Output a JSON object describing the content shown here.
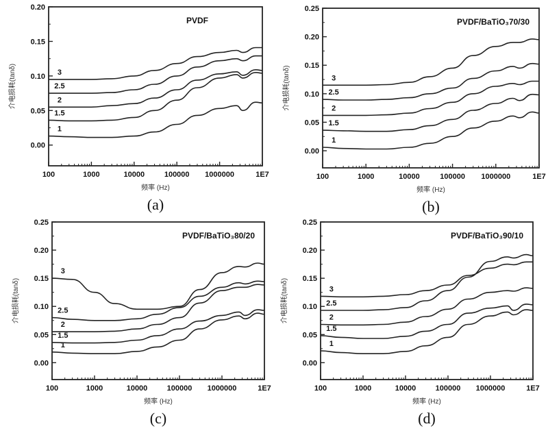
{
  "chart_data": [
    {
      "type": "line",
      "panel": "(a)",
      "title": "PVDF",
      "xlabel": "频率 (Hz)",
      "ylabel": "介电损耗(tanδ)",
      "xscale": "log",
      "xlim": [
        100,
        10000000
      ],
      "ylim": [
        -0.03,
        0.2
      ],
      "xticks": [
        100,
        1000,
        10000,
        100000,
        1000000,
        10000000
      ],
      "xtick_labels": [
        "100",
        "1000",
        "10000",
        "100000",
        "1000000",
        "1E7"
      ],
      "yticks": [
        0.0,
        0.05,
        0.1,
        0.15,
        0.2
      ],
      "ytick_labels": [
        "0.00",
        "0.05",
        "0.10",
        "0.15",
        "0.20"
      ],
      "x": [
        100,
        300,
        1000,
        3000,
        10000,
        30000,
        100000,
        300000,
        1000000,
        2500000,
        3500000,
        7000000,
        10000000
      ],
      "series": [
        {
          "name": "1",
          "values": [
            0.013,
            0.012,
            0.011,
            0.011,
            0.013,
            0.019,
            0.03,
            0.043,
            0.053,
            0.057,
            0.05,
            0.062,
            0.061
          ]
        },
        {
          "name": "1.5",
          "values": [
            0.036,
            0.035,
            0.035,
            0.036,
            0.04,
            0.05,
            0.065,
            0.083,
            0.097,
            0.102,
            0.097,
            0.105,
            0.104
          ]
        },
        {
          "name": "2",
          "values": [
            0.055,
            0.055,
            0.055,
            0.057,
            0.06,
            0.068,
            0.08,
            0.094,
            0.103,
            0.106,
            0.101,
            0.109,
            0.108
          ]
        },
        {
          "name": "2.5",
          "values": [
            0.075,
            0.075,
            0.075,
            0.076,
            0.08,
            0.088,
            0.1,
            0.113,
            0.122,
            0.125,
            0.122,
            0.129,
            0.129
          ]
        },
        {
          "name": "3",
          "values": [
            0.095,
            0.095,
            0.095,
            0.096,
            0.1,
            0.108,
            0.118,
            0.128,
            0.134,
            0.137,
            0.134,
            0.141,
            0.141
          ]
        }
      ]
    },
    {
      "type": "line",
      "panel": "(b)",
      "title": "PVDF/BaTiO₃70/30",
      "xlabel": "频率 (Hz)",
      "ylabel": "介电损耗(tanδ)",
      "xscale": "log",
      "xlim": [
        100,
        10000000
      ],
      "ylim": [
        -0.03,
        0.25
      ],
      "xticks": [
        100,
        1000,
        10000,
        100000,
        1000000,
        10000000
      ],
      "xtick_labels": [
        "100",
        "1000",
        "10000",
        "100000",
        "1000000",
        "1E7"
      ],
      "yticks": [
        0.0,
        0.05,
        0.1,
        0.15,
        0.2,
        0.25
      ],
      "ytick_labels": [
        "0.00",
        "0.05",
        "0.10",
        "0.15",
        "0.20",
        "0.25"
      ],
      "x": [
        100,
        300,
        1000,
        3000,
        10000,
        30000,
        100000,
        300000,
        1000000,
        2500000,
        3500000,
        7000000,
        10000000
      ],
      "series": [
        {
          "name": "1",
          "values": [
            0.006,
            0.004,
            0.003,
            0.003,
            0.006,
            0.013,
            0.025,
            0.04,
            0.052,
            0.061,
            0.058,
            0.068,
            0.066
          ]
        },
        {
          "name": "1.5",
          "values": [
            0.036,
            0.035,
            0.034,
            0.034,
            0.037,
            0.044,
            0.055,
            0.071,
            0.083,
            0.092,
            0.088,
            0.099,
            0.098
          ]
        },
        {
          "name": "2",
          "values": [
            0.062,
            0.062,
            0.062,
            0.063,
            0.066,
            0.074,
            0.085,
            0.1,
            0.113,
            0.118,
            0.116,
            0.122,
            0.122
          ]
        },
        {
          "name": "2.5",
          "values": [
            0.09,
            0.089,
            0.089,
            0.09,
            0.093,
            0.1,
            0.11,
            0.127,
            0.14,
            0.148,
            0.145,
            0.153,
            0.152
          ]
        },
        {
          "name": "3",
          "values": [
            0.115,
            0.115,
            0.115,
            0.116,
            0.12,
            0.13,
            0.145,
            0.167,
            0.183,
            0.19,
            0.19,
            0.196,
            0.195
          ]
        }
      ]
    },
    {
      "type": "line",
      "panel": "(c)",
      "title": "PVDF/BaTiO₃80/20",
      "xlabel": "频率 (Hz)",
      "ylabel": "介电损耗(tanδ)",
      "xscale": "log",
      "xlim": [
        100,
        10000000
      ],
      "ylim": [
        -0.03,
        0.25
      ],
      "xticks": [
        100,
        1000,
        10000,
        100000,
        1000000,
        10000000
      ],
      "xtick_labels": [
        "100",
        "1000",
        "10000",
        "100000",
        "1000000",
        "1E7"
      ],
      "yticks": [
        0.0,
        0.05,
        0.1,
        0.15,
        0.2,
        0.25
      ],
      "ytick_labels": [
        "0.00",
        "0.05",
        "0.10",
        "0.15",
        "0.20",
        "0.25"
      ],
      "x": [
        100,
        300,
        1000,
        3000,
        10000,
        30000,
        100000,
        300000,
        1000000,
        2500000,
        3500000,
        7000000,
        10000000
      ],
      "series": [
        {
          "name": "1",
          "values": [
            0.019,
            0.017,
            0.016,
            0.016,
            0.02,
            0.028,
            0.04,
            0.06,
            0.076,
            0.083,
            0.078,
            0.088,
            0.086
          ]
        },
        {
          "name": "1.5",
          "values": [
            0.036,
            0.035,
            0.035,
            0.036,
            0.04,
            0.048,
            0.06,
            0.074,
            0.084,
            0.09,
            0.084,
            0.094,
            0.093
          ]
        },
        {
          "name": "2",
          "values": [
            0.055,
            0.055,
            0.055,
            0.056,
            0.06,
            0.068,
            0.08,
            0.106,
            0.128,
            0.134,
            0.134,
            0.139,
            0.138
          ]
        },
        {
          "name": "2.5",
          "values": [
            0.08,
            0.077,
            0.075,
            0.075,
            0.078,
            0.086,
            0.098,
            0.118,
            0.134,
            0.142,
            0.14,
            0.145,
            0.144
          ]
        },
        {
          "name": "3",
          "values": [
            0.15,
            0.148,
            0.125,
            0.105,
            0.095,
            0.095,
            0.1,
            0.13,
            0.16,
            0.171,
            0.17,
            0.177,
            0.175
          ]
        }
      ]
    },
    {
      "type": "line",
      "panel": "(d)",
      "title": "PVDF/BaTiO₃90/10",
      "xlabel": "频率 (Hz)",
      "ylabel": "介电损耗(tanδ)",
      "xscale": "log",
      "xlim": [
        100,
        10000000
      ],
      "ylim": [
        -0.03,
        0.25
      ],
      "xticks": [
        100,
        1000,
        10000,
        100000,
        1000000,
        10000000
      ],
      "xtick_labels": [
        "100",
        "1000",
        "10000",
        "100000",
        "1000000",
        "1E7"
      ],
      "yticks": [
        0.0,
        0.05,
        0.1,
        0.15,
        0.2,
        0.25
      ],
      "ytick_labels": [
        "0.00",
        "0.05",
        "0.10",
        "0.15",
        "0.20",
        "0.25"
      ],
      "x": [
        100,
        300,
        1000,
        3000,
        10000,
        30000,
        100000,
        300000,
        1000000,
        2500000,
        3500000,
        7000000,
        10000000
      ],
      "series": [
        {
          "name": "1",
          "values": [
            0.021,
            0.018,
            0.016,
            0.016,
            0.02,
            0.03,
            0.045,
            0.068,
            0.083,
            0.09,
            0.085,
            0.094,
            0.093
          ]
        },
        {
          "name": "1.5",
          "values": [
            0.048,
            0.045,
            0.043,
            0.043,
            0.047,
            0.056,
            0.068,
            0.088,
            0.097,
            0.101,
            0.093,
            0.104,
            0.103
          ]
        },
        {
          "name": "2",
          "values": [
            0.068,
            0.067,
            0.067,
            0.068,
            0.072,
            0.082,
            0.095,
            0.113,
            0.125,
            0.128,
            0.127,
            0.133,
            0.132
          ]
        },
        {
          "name": "2.5",
          "values": [
            0.093,
            0.093,
            0.093,
            0.094,
            0.098,
            0.11,
            0.128,
            0.152,
            0.18,
            0.188,
            0.186,
            0.192,
            0.19
          ]
        },
        {
          "name": "3",
          "values": [
            0.118,
            0.117,
            0.117,
            0.118,
            0.121,
            0.128,
            0.138,
            0.155,
            0.168,
            0.175,
            0.174,
            0.179,
            0.179
          ]
        }
      ]
    }
  ]
}
